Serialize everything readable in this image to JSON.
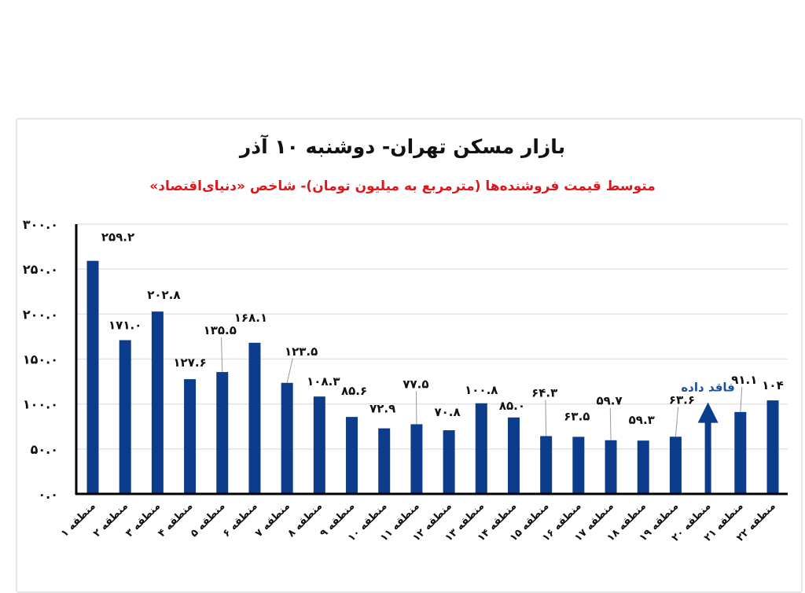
{
  "header": {
    "title": "بازار مسکن تهران- دوشنبه ۱۰ آذر",
    "subtitle": "متوسط قیمت فروشنده‌ها (مترمربع به میلیون تومان)- شاخص «دنیای‌اقتصاد»"
  },
  "colors": {
    "bar": "#0b3d8c",
    "title": "#111111",
    "subtitle": "#e0161b",
    "missing_label": "#1f4e9c",
    "grid": "#e3e3e3",
    "axis": "#000000"
  },
  "chart_data": {
    "type": "bar",
    "title": "بازار مسکن تهران- دوشنبه ۱۰ آذر",
    "subtitle": "متوسط قیمت فروشنده‌ها (مترمربع به میلیون تومان)- شاخص «دنیای‌اقتصاد»",
    "xlabel": "",
    "ylabel": "",
    "ylim": [
      0,
      300
    ],
    "yticks": [
      0,
      50,
      100,
      150,
      200,
      250,
      300
    ],
    "ytick_labels": [
      "۰.۰",
      "۵۰.۰",
      "۱۰۰.۰",
      "۱۵۰.۰",
      "۲۰۰.۰",
      "۲۵۰.۰",
      "۳۰۰.۰"
    ],
    "grid": true,
    "legend": "none",
    "categories": [
      "منطقه ۱",
      "منطقه ۲",
      "منطقه ۳",
      "منطقه ۴",
      "منطقه ۵",
      "منطقه ۶",
      "منطقه ۷",
      "منطقه ۸",
      "منطقه ۹",
      "منطقه ۱۰",
      "منطقه ۱۱",
      "منطقه ۱۲",
      "منطقه ۱۳",
      "منطقه ۱۴",
      "منطقه ۱۵",
      "منطقه ۱۶",
      "منطقه ۱۷",
      "منطقه ۱۸",
      "منطقه ۱۹",
      "منطقه ۲۰",
      "منطقه ۲۱",
      "منطقه ۲۲"
    ],
    "values": [
      259.2,
      171.0,
      202.8,
      127.6,
      135.5,
      168.1,
      123.5,
      108.3,
      85.6,
      72.9,
      77.5,
      70.8,
      100.8,
      85.0,
      64.3,
      63.5,
      59.7,
      59.3,
      63.6,
      null,
      91.1,
      104
    ],
    "value_labels": [
      "۲۵۹.۲",
      "۱۷۱.۰",
      "۲۰۲.۸",
      "۱۲۷.۶",
      "۱۳۵.۵",
      "۱۶۸.۱",
      "۱۲۳.۵",
      "۱۰۸.۳",
      "۸۵.۶",
      "۷۲.۹",
      "۷۷.۵",
      "۷۰.۸",
      "۱۰۰.۸",
      "۸۵.۰",
      "۶۴.۳",
      "۶۳.۵",
      "۵۹.۷",
      "۵۹.۳",
      "۶۳.۶",
      "فاقد داده",
      "۹۱.۱",
      "۱۰۴"
    ],
    "annotations": [
      {
        "category": "منطقه ۲۰",
        "text": "فاقد داده",
        "marker": "up-arrow"
      }
    ]
  }
}
